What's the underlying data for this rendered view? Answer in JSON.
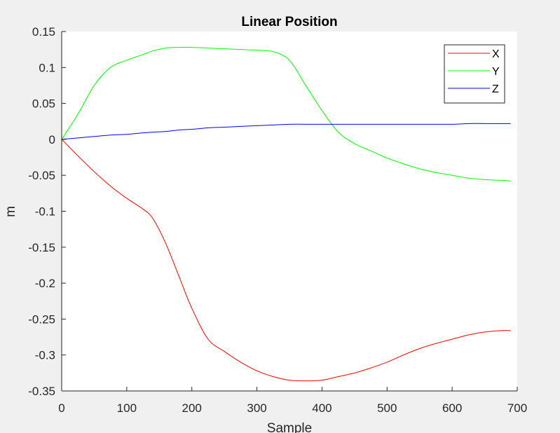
{
  "chart_data": {
    "type": "line",
    "title": "Linear Position",
    "xlabel": "Sample",
    "ylabel": "m",
    "xlim": [
      0,
      700
    ],
    "ylim": [
      -0.35,
      0.15
    ],
    "xticks": [
      0,
      100,
      200,
      300,
      400,
      500,
      600,
      700
    ],
    "xtick_labels": [
      "0",
      "100",
      "200",
      "300",
      "400",
      "500",
      "600",
      "700"
    ],
    "yticks": [
      0.15,
      0.1,
      0.05,
      0,
      -0.05,
      -0.1,
      -0.15,
      -0.2,
      -0.25,
      -0.3,
      -0.35
    ],
    "ytick_labels": [
      "0.15",
      "0.1",
      "0.05",
      "0",
      "-0.05",
      "-0.1",
      "-0.15",
      "-0.2",
      "-0.25",
      "-0.3",
      "-0.35"
    ],
    "grid": false,
    "legend_position": "top-right",
    "x": [
      0,
      25,
      50,
      75,
      100,
      125,
      140,
      160,
      180,
      200,
      225,
      250,
      275,
      300,
      325,
      350,
      375,
      400,
      425,
      450,
      475,
      500,
      525,
      550,
      575,
      600,
      625,
      650,
      675,
      690
    ],
    "series": [
      {
        "name": "X",
        "color": "#ff0000",
        "values": [
          0,
          -0.023,
          -0.045,
          -0.065,
          -0.082,
          -0.097,
          -0.11,
          -0.145,
          -0.19,
          -0.235,
          -0.278,
          -0.295,
          -0.31,
          -0.322,
          -0.33,
          -0.335,
          -0.336,
          -0.335,
          -0.33,
          -0.325,
          -0.318,
          -0.31,
          -0.3,
          -0.291,
          -0.284,
          -0.278,
          -0.272,
          -0.268,
          -0.266,
          -0.266
        ]
      },
      {
        "name": "Y",
        "color": "#00ff00",
        "values": [
          0,
          0.035,
          0.075,
          0.1,
          0.11,
          0.118,
          0.123,
          0.127,
          0.128,
          0.128,
          0.127,
          0.126,
          0.125,
          0.124,
          0.122,
          0.11,
          0.075,
          0.04,
          0.01,
          -0.006,
          -0.016,
          -0.026,
          -0.034,
          -0.041,
          -0.046,
          -0.05,
          -0.054,
          -0.056,
          -0.057,
          -0.058
        ]
      },
      {
        "name": "Z",
        "color": "#0000ff",
        "values": [
          0,
          0.002,
          0.004,
          0.006,
          0.007,
          0.009,
          0.01,
          0.011,
          0.013,
          0.014,
          0.016,
          0.017,
          0.018,
          0.019,
          0.02,
          0.021,
          0.021,
          0.021,
          0.021,
          0.021,
          0.021,
          0.021,
          0.021,
          0.021,
          0.021,
          0.021,
          0.022,
          0.022,
          0.022,
          0.022
        ]
      }
    ]
  }
}
